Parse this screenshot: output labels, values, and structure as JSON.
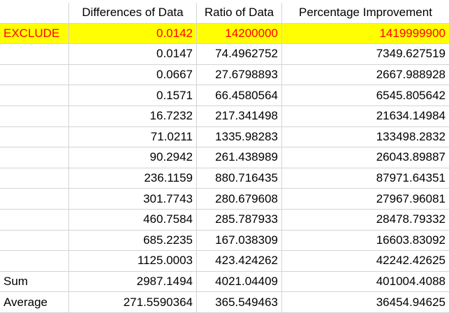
{
  "headers": [
    "",
    "Differences of Data",
    "Ratio of Data",
    "Percentage Improvement"
  ],
  "exclude_row": [
    "EXCLUDE",
    "0.0142",
    "14200000",
    "1419999900"
  ],
  "rows": [
    [
      "",
      "0.0147",
      "74.4962752",
      "7349.627519"
    ],
    [
      "",
      "0.0667",
      "27.6798893",
      "2667.988928"
    ],
    [
      "",
      "0.1571",
      "66.4580564",
      "6545.805642"
    ],
    [
      "",
      "16.7232",
      "217.341498",
      "21634.14984"
    ],
    [
      "",
      "71.0211",
      "1335.98283",
      "133498.2832"
    ],
    [
      "",
      "90.2942",
      "261.438989",
      "26043.89887"
    ],
    [
      "",
      "236.1159",
      "880.716435",
      "87971.64351"
    ],
    [
      "",
      "301.7743",
      "280.679608",
      "27967.96081"
    ],
    [
      "",
      "460.7584",
      "285.787933",
      "28478.79332"
    ],
    [
      "",
      "685.2235",
      "167.038309",
      "16603.83092"
    ],
    [
      "",
      "1125.0003",
      "423.424262",
      "42242.42625"
    ],
    [
      "Sum",
      "2987.1494",
      "4021.04409",
      "401004.4088"
    ],
    [
      "Average",
      "271.5590364",
      "365.549463",
      "36454.94625"
    ]
  ],
  "colors": {
    "highlight": "#ffff00",
    "exclude_text": "#ff0000",
    "gridline": "#d4d4d4"
  }
}
